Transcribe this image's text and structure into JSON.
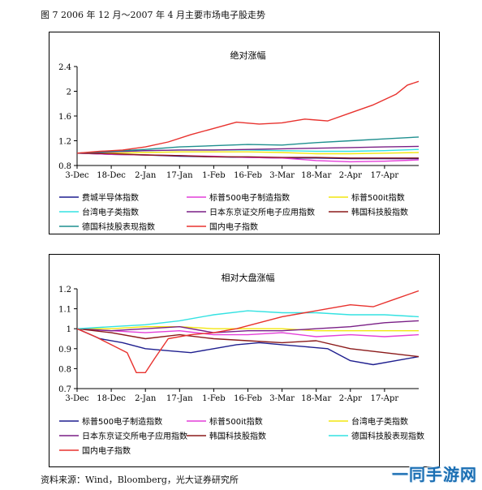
{
  "caption": "图 7 2006 年 12 月～2007 年 4 月主要市场电子股走势",
  "source": "资料来源：Wind，Bloomberg，光大证券研究所",
  "watermark": "一同手游网",
  "chart_data": [
    {
      "type": "line",
      "title": "绝对涨幅",
      "xlabel": "",
      "ylabel": "",
      "ylim": [
        0.8,
        2.4
      ],
      "yticks": [
        "2.4",
        "2",
        "1.6",
        "1.2",
        "0.8"
      ],
      "ytick_values": [
        2.4,
        2.0,
        1.6,
        1.2,
        0.8
      ],
      "xticks": [
        "3-Dec",
        "18-Dec",
        "2-Jan",
        "17-Jan",
        "1-Feb",
        "16-Feb",
        "3-Mar",
        "18-Mar",
        "2-Apr",
        "17-Apr"
      ],
      "xtick_days": [
        0,
        15,
        30,
        45,
        60,
        75,
        90,
        105,
        120,
        135
      ],
      "xrange": [
        0,
        150
      ],
      "grid": false,
      "legend_position": "bottom",
      "series": [
        {
          "name": "费城半导体指数",
          "color": "#1f1f8f",
          "x": [
            0,
            15,
            30,
            45,
            60,
            75,
            90,
            105,
            120,
            135,
            150
          ],
          "values": [
            1.0,
            0.98,
            0.97,
            0.95,
            0.94,
            0.93,
            0.92,
            0.92,
            0.91,
            0.91,
            0.91
          ]
        },
        {
          "name": "标普500电子制造指数",
          "color": "#e43fd9",
          "x": [
            0,
            15,
            30,
            45,
            60,
            75,
            90,
            105,
            120,
            135,
            150
          ],
          "values": [
            1.0,
            0.98,
            0.97,
            0.96,
            0.95,
            0.93,
            0.92,
            0.88,
            0.86,
            0.87,
            0.89
          ]
        },
        {
          "name": "标普500it指数",
          "color": "#f2e60f",
          "x": [
            0,
            15,
            30,
            45,
            60,
            75,
            90,
            105,
            120,
            135,
            150
          ],
          "values": [
            1.0,
            1.0,
            1.01,
            1.02,
            1.02,
            1.02,
            1.01,
            0.99,
            0.99,
            1.0,
            1.01
          ]
        },
        {
          "name": "台湾电子类指数",
          "color": "#34e2e2",
          "x": [
            0,
            15,
            30,
            45,
            60,
            75,
            90,
            105,
            120,
            135,
            150
          ],
          "values": [
            1.0,
            1.02,
            1.04,
            1.05,
            1.05,
            1.05,
            1.04,
            1.03,
            1.03,
            1.04,
            1.06
          ]
        },
        {
          "name": "日本东京证交所电子应用指数",
          "color": "#7a1f86",
          "x": [
            0,
            15,
            30,
            45,
            60,
            75,
            90,
            105,
            120,
            135,
            150
          ],
          "values": [
            1.0,
            1.02,
            1.04,
            1.05,
            1.05,
            1.06,
            1.07,
            1.08,
            1.09,
            1.1,
            1.11
          ]
        },
        {
          "name": "韩国科技股指数",
          "color": "#8b1a1a",
          "x": [
            0,
            15,
            30,
            45,
            60,
            75,
            90,
            105,
            120,
            135,
            150
          ],
          "values": [
            1.0,
            0.99,
            0.97,
            0.96,
            0.94,
            0.94,
            0.93,
            0.93,
            0.92,
            0.92,
            0.92
          ]
        },
        {
          "name": "德国科技股表现指数",
          "color": "#1f8f8f",
          "x": [
            0,
            15,
            30,
            45,
            60,
            75,
            90,
            105,
            120,
            135,
            150
          ],
          "values": [
            1.0,
            1.03,
            1.06,
            1.1,
            1.12,
            1.14,
            1.13,
            1.17,
            1.2,
            1.23,
            1.26
          ]
        },
        {
          "name": "国内电子指数",
          "color": "#e8322e",
          "x": [
            0,
            10,
            20,
            30,
            40,
            50,
            60,
            70,
            80,
            90,
            100,
            110,
            120,
            130,
            140,
            145,
            150
          ],
          "values": [
            1.0,
            1.03,
            1.05,
            1.1,
            1.18,
            1.3,
            1.4,
            1.5,
            1.47,
            1.49,
            1.55,
            1.52,
            1.65,
            1.78,
            1.95,
            2.1,
            2.16
          ]
        }
      ]
    },
    {
      "type": "line",
      "title": "相对大盘涨幅",
      "xlabel": "",
      "ylabel": "",
      "ylim": [
        0.7,
        1.2
      ],
      "yticks": [
        "1.2",
        "1.1",
        "1",
        "0.9",
        "0.8",
        "0.7"
      ],
      "ytick_values": [
        1.2,
        1.1,
        1.0,
        0.9,
        0.8,
        0.7
      ],
      "xticks": [
        "3-Dec",
        "18-Dec",
        "2-Jan",
        "17-Jan",
        "1-Feb",
        "16-Feb",
        "3-Mar",
        "18-Mar",
        "2-Apr",
        "17-Apr"
      ],
      "xtick_days": [
        0,
        15,
        30,
        45,
        60,
        75,
        90,
        105,
        120,
        135
      ],
      "xrange": [
        0,
        150
      ],
      "grid": false,
      "legend_position": "bottom",
      "series": [
        {
          "name": "标普500电子制造指数",
          "color": "#1f1f8f",
          "x": [
            0,
            10,
            20,
            30,
            40,
            50,
            60,
            70,
            80,
            90,
            100,
            110,
            120,
            130,
            140,
            150
          ],
          "values": [
            1.0,
            0.95,
            0.93,
            0.9,
            0.89,
            0.88,
            0.9,
            0.92,
            0.93,
            0.92,
            0.91,
            0.9,
            0.84,
            0.82,
            0.84,
            0.86
          ]
        },
        {
          "name": "标普500it指数",
          "color": "#e43fd9",
          "x": [
            0,
            15,
            30,
            45,
            60,
            75,
            90,
            105,
            120,
            135,
            150
          ],
          "values": [
            1.0,
            0.99,
            0.98,
            0.99,
            0.97,
            0.97,
            0.98,
            0.96,
            0.97,
            0.96,
            0.97
          ]
        },
        {
          "name": "台湾电子类指数",
          "color": "#f2e60f",
          "x": [
            0,
            15,
            30,
            45,
            60,
            75,
            90,
            105,
            120,
            135,
            150
          ],
          "values": [
            1.0,
            1.0,
            1.01,
            1.01,
            1.0,
            1.0,
            1.0,
            0.99,
            0.99,
            0.99,
            0.99
          ]
        },
        {
          "name": "日本东京证交所电子应用指数",
          "color": "#7a1f86",
          "x": [
            0,
            15,
            30,
            45,
            60,
            75,
            90,
            105,
            120,
            135,
            150
          ],
          "values": [
            1.0,
            0.99,
            1.0,
            1.01,
            0.98,
            0.99,
            0.99,
            1.0,
            1.01,
            1.03,
            1.04
          ]
        },
        {
          "name": "韩国科技股指数",
          "color": "#8b1a1a",
          "x": [
            0,
            15,
            30,
            45,
            60,
            75,
            90,
            105,
            120,
            135,
            150
          ],
          "values": [
            1.0,
            0.98,
            0.95,
            0.97,
            0.95,
            0.94,
            0.93,
            0.94,
            0.9,
            0.88,
            0.86
          ]
        },
        {
          "name": "德国科技股表现指数",
          "color": "#34e2e2",
          "x": [
            0,
            15,
            30,
            45,
            60,
            75,
            90,
            105,
            120,
            135,
            150
          ],
          "values": [
            1.0,
            1.01,
            1.02,
            1.04,
            1.07,
            1.09,
            1.08,
            1.08,
            1.07,
            1.07,
            1.06
          ]
        },
        {
          "name": "国内电子指数",
          "color": "#e8322e",
          "x": [
            0,
            8,
            15,
            22,
            26,
            30,
            34,
            40,
            50,
            60,
            70,
            80,
            90,
            100,
            110,
            120,
            130,
            140,
            150
          ],
          "values": [
            1.0,
            0.96,
            0.92,
            0.88,
            0.78,
            0.78,
            0.85,
            0.95,
            0.97,
            0.98,
            1.0,
            1.03,
            1.06,
            1.08,
            1.1,
            1.12,
            1.11,
            1.15,
            1.19
          ]
        }
      ]
    }
  ]
}
